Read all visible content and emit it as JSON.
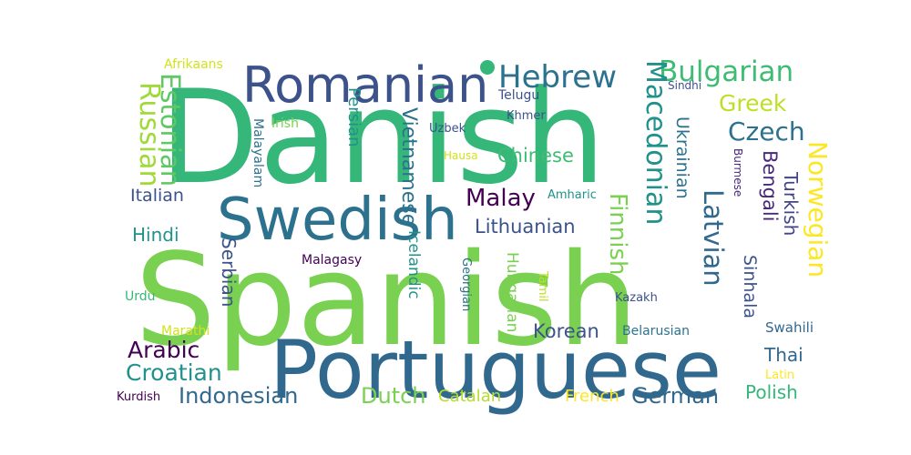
{
  "words": [
    {
      "text": "Danish",
      "color": "#35b779"
    },
    {
      "text": "Spanish",
      "color": "#7ad151"
    },
    {
      "text": "Portuguese",
      "color": "#31688e"
    },
    {
      "text": "Swedish",
      "color": "#2c728e"
    },
    {
      "text": "Romanian",
      "color": "#3b528b"
    },
    {
      "text": "Hebrew",
      "color": "#2c728e"
    },
    {
      "text": "Bulgarian",
      "color": "#3fbc73"
    },
    {
      "text": "Macedonian",
      "color": "#21918c"
    },
    {
      "text": "Greek",
      "color": "#bddf26"
    },
    {
      "text": "Czech",
      "color": "#2c728e"
    },
    {
      "text": "Russian",
      "color": "#a0da39"
    },
    {
      "text": "Estonian",
      "color": "#5ec962"
    },
    {
      "text": "Persian",
      "color": "#21918c"
    },
    {
      "text": "Vietnamese",
      "color": "#2c728e"
    },
    {
      "text": "Chinese",
      "color": "#3fbc73"
    },
    {
      "text": "Italian",
      "color": "#3b528b"
    },
    {
      "text": "Malay",
      "color": "#440154"
    },
    {
      "text": "Lithuanian",
      "color": "#3b528b"
    },
    {
      "text": "Finnish",
      "color": "#7ad151"
    },
    {
      "text": "Ukrainian",
      "color": "#2c728e"
    },
    {
      "text": "Latvian",
      "color": "#31688e"
    },
    {
      "text": "Bengali",
      "color": "#482878"
    },
    {
      "text": "Turkish",
      "color": "#414487"
    },
    {
      "text": "Norwegian",
      "color": "#fde725"
    },
    {
      "text": "Hindi",
      "color": "#21918c"
    },
    {
      "text": "Serbian",
      "color": "#3b528b"
    },
    {
      "text": "Icelandic",
      "color": "#21918c"
    },
    {
      "text": "Hungarian",
      "color": "#7ad151"
    },
    {
      "text": "Sinhala",
      "color": "#3b528b"
    },
    {
      "text": "Arabic",
      "color": "#440154"
    },
    {
      "text": "Croatian",
      "color": "#21918c"
    },
    {
      "text": "Indonesian",
      "color": "#31688e"
    },
    {
      "text": "Dutch",
      "color": "#7ad151"
    },
    {
      "text": "German",
      "color": "#31688e"
    },
    {
      "text": "Korean",
      "color": "#3b528b"
    },
    {
      "text": "Thai",
      "color": "#31688e"
    },
    {
      "text": "Polish",
      "color": "#35b779"
    },
    {
      "text": "Catalan",
      "color": "#b5de2b"
    },
    {
      "text": "French",
      "color": "#fde725"
    },
    {
      "text": "Afrikaans",
      "color": "#d2e21b"
    },
    {
      "text": "Telugu",
      "color": "#3b528b"
    },
    {
      "text": "Sindhi",
      "color": "#3b528b"
    },
    {
      "text": "Irish",
      "color": "#7ad151"
    },
    {
      "text": "Khmer",
      "color": "#3b528b"
    },
    {
      "text": "Uzbek",
      "color": "#3b528b"
    },
    {
      "text": "Malayalam",
      "color": "#2c728e"
    },
    {
      "text": "Hausa",
      "color": "#d2e21b"
    },
    {
      "text": "Burmese",
      "color": "#482878"
    },
    {
      "text": "Amharic",
      "color": "#21918c"
    },
    {
      "text": "Malagasy",
      "color": "#440154"
    },
    {
      "text": "Georgian",
      "color": "#2c728e"
    },
    {
      "text": "Tamil",
      "color": "#bddf26"
    },
    {
      "text": "Kazakh",
      "color": "#3b528b"
    },
    {
      "text": "Urdu",
      "color": "#35b779"
    },
    {
      "text": "Marathi",
      "color": "#d2e21b"
    },
    {
      "text": "Belarusian",
      "color": "#2c728e"
    },
    {
      "text": "Swahili",
      "color": "#31688e"
    },
    {
      "text": "Latin",
      "color": "#fde725"
    },
    {
      "text": "Kurdish",
      "color": "#440154"
    }
  ]
}
